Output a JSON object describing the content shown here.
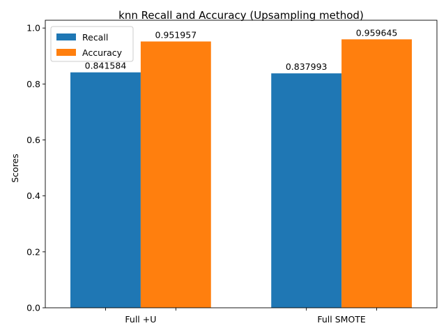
{
  "chart_data": {
    "type": "bar",
    "title": "knn Recall and Accuracy (Upsampling method)",
    "xlabel": "",
    "ylabel": "Scores",
    "categories": [
      "Full +U",
      "Full SMOTE"
    ],
    "series": [
      {
        "name": "Recall",
        "values": [
          0.841584,
          0.837993
        ],
        "labels": [
          "0.841584",
          "0.837993"
        ],
        "color": "#1f77b4"
      },
      {
        "name": "Accuracy",
        "values": [
          0.951957,
          0.959645
        ],
        "labels": [
          "0.951957",
          "0.959645"
        ],
        "color": "#ff7f0e"
      }
    ],
    "ylim": [
      0,
      1.0
    ],
    "yticks": [
      0.0,
      0.2,
      0.4,
      0.6,
      0.8,
      1.0
    ],
    "ytick_labels": [
      "0.0",
      "0.2",
      "0.4",
      "0.6",
      "0.8",
      "1.0"
    ],
    "grid": false,
    "legend_position": "top-left"
  }
}
